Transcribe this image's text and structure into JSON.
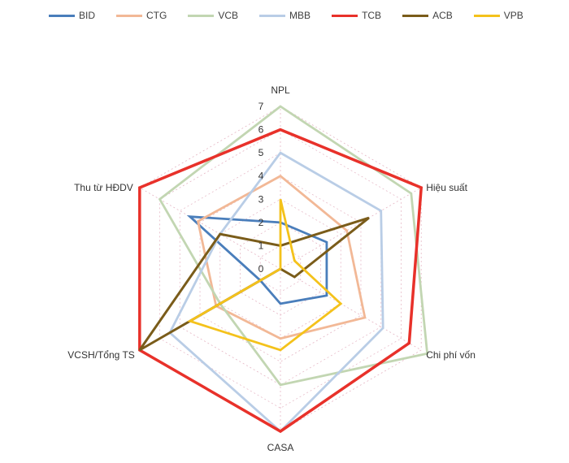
{
  "chart_data": {
    "type": "radar",
    "title": "",
    "axes": [
      "NPL",
      "Hiệu suất",
      "Chi phí vốn",
      "CASA",
      "VCSH/Tổng TS",
      "Thu từ HĐDV"
    ],
    "rlim": [
      0,
      7
    ],
    "ticks": [
      "0",
      "1",
      "2",
      "3",
      "4",
      "5",
      "6",
      "7"
    ],
    "grid": true,
    "legend": "top",
    "series": [
      {
        "name": "BID",
        "color": "#4a7ebb",
        "values": [
          2.0,
          2.3,
          2.3,
          1.5,
          1.0,
          4.5
        ]
      },
      {
        "name": "CTG",
        "color": "#f2b896",
        "values": [
          4.0,
          3.3,
          4.2,
          3.0,
          3.2,
          4.1
        ]
      },
      {
        "name": "VCB",
        "color": "#c2d6b2",
        "values": [
          7.0,
          6.5,
          7.3,
          5.0,
          3.0,
          6.0
        ]
      },
      {
        "name": "MBB",
        "color": "#b9cde6",
        "values": [
          5.0,
          5.0,
          5.1,
          7.0,
          5.5,
          3.0
        ]
      },
      {
        "name": "TCB",
        "color": "#e8312a",
        "values": [
          6.0,
          7.0,
          6.4,
          7.0,
          7.0,
          7.0
        ]
      },
      {
        "name": "ACB",
        "color": "#7a5c1a",
        "values": [
          1.0,
          4.4,
          0.7,
          0.0,
          7.0,
          3.0
        ]
      },
      {
        "name": "VPB",
        "color": "#f4c21b",
        "values": [
          3.0,
          0.7,
          3.0,
          3.5,
          4.5,
          0.0
        ]
      }
    ]
  }
}
